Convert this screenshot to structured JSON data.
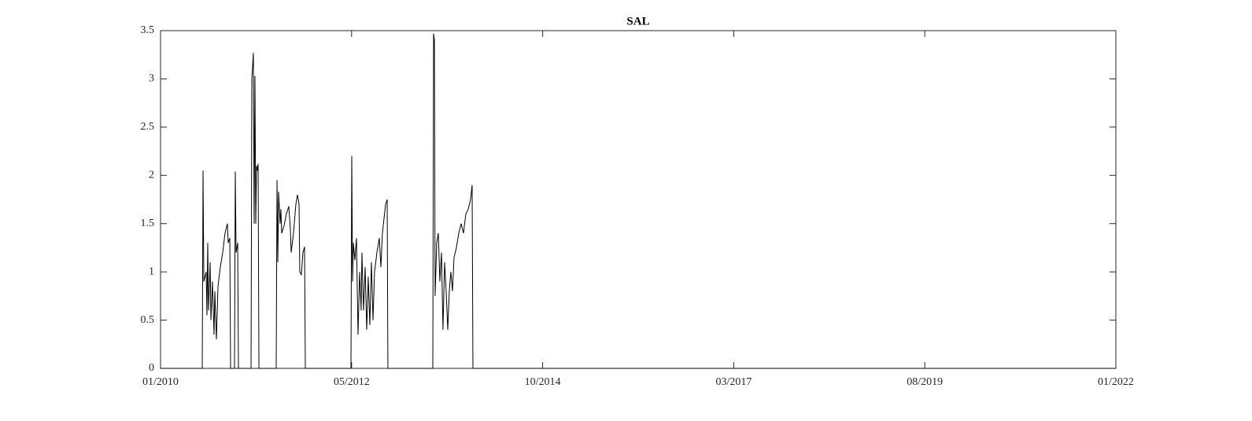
{
  "chart_data": {
    "type": "line",
    "title": "SAL",
    "x": [
      2010.0,
      2010.524,
      2010.534,
      2010.544,
      2010.573,
      2010.583,
      2010.593,
      2010.603,
      2010.623,
      2010.633,
      2010.652,
      2010.672,
      2010.682,
      2010.702,
      2010.722,
      2010.751,
      2010.781,
      2010.81,
      2010.84,
      2010.85,
      2010.87,
      2010.88,
      2010.929,
      2010.939,
      2010.949,
      2010.969,
      2010.979,
      2011.137,
      2011.147,
      2011.166,
      2011.176,
      2011.186,
      2011.196,
      2011.206,
      2011.216,
      2011.226,
      2011.236,
      2011.453,
      2011.463,
      2011.473,
      2011.483,
      2011.502,
      2011.512,
      2011.522,
      2011.552,
      2011.581,
      2011.611,
      2011.631,
      2011.641,
      2011.67,
      2011.7,
      2011.72,
      2011.74,
      2011.749,
      2011.769,
      2011.789,
      2011.809,
      2011.819,
      2012.392,
      2012.402,
      2012.412,
      2012.422,
      2012.441,
      2012.461,
      2012.481,
      2012.501,
      2012.52,
      2012.53,
      2012.55,
      2012.57,
      2012.59,
      2012.609,
      2012.629,
      2012.649,
      2012.669,
      2012.688,
      2012.718,
      2012.748,
      2012.768,
      2012.787,
      2012.807,
      2012.827,
      2012.847,
      2012.856,
      2013.42,
      2013.43,
      2013.44,
      2013.449,
      2013.469,
      2013.489,
      2013.509,
      2013.529,
      2013.548,
      2013.568,
      2013.588,
      2013.608,
      2013.627,
      2013.647,
      2013.667,
      2013.687,
      2013.716,
      2013.746,
      2013.776,
      2013.805,
      2013.835,
      2013.865,
      2013.894,
      2013.914,
      2013.924,
      2022.0
    ],
    "series": [
      {
        "color": "#000000",
        "values": [
          0,
          0,
          2.05,
          0.9,
          1.0,
          0.55,
          1.3,
          0.6,
          1.1,
          0.5,
          0.9,
          0.35,
          0.8,
          0.3,
          0.85,
          1.05,
          1.2,
          1.4,
          1.5,
          1.3,
          1.35,
          0,
          0,
          2.04,
          1.2,
          1.3,
          0,
          0,
          3.0,
          3.27,
          1.5,
          3.03,
          1.5,
          2.1,
          2.05,
          2.12,
          0,
          0,
          1.95,
          1.1,
          1.83,
          1.5,
          1.65,
          1.4,
          1.48,
          1.6,
          1.68,
          1.45,
          1.2,
          1.4,
          1.7,
          1.8,
          1.7,
          1.0,
          0.97,
          1.2,
          1.26,
          0,
          0,
          2.2,
          0.9,
          1.3,
          1.12,
          1.35,
          0.35,
          1.0,
          0.6,
          1.2,
          0.6,
          1.05,
          0.4,
          0.95,
          0.45,
          1.1,
          0.5,
          1.0,
          1.2,
          1.35,
          1.05,
          1.4,
          1.55,
          1.7,
          1.75,
          0,
          0,
          3.47,
          3.4,
          0.75,
          1.3,
          1.4,
          0.9,
          1.2,
          0.4,
          1.1,
          0.8,
          0.4,
          0.8,
          1.0,
          0.8,
          1.15,
          1.25,
          1.4,
          1.5,
          1.4,
          1.6,
          1.65,
          1.75,
          1.9,
          0,
          0
        ]
      }
    ],
    "xlim": [
      2010,
      2022
    ],
    "xticks": [
      {
        "value": 2010,
        "label": "01/2010"
      },
      {
        "value": 2012.4,
        "label": "05/2012"
      },
      {
        "value": 2014.8,
        "label": "10/2014"
      },
      {
        "value": 2017.2,
        "label": "03/2017"
      },
      {
        "value": 2019.6,
        "label": "08/2019"
      },
      {
        "value": 2022,
        "label": "01/2022"
      }
    ],
    "ylim": [
      0,
      3.5
    ],
    "yticks": [
      0,
      0.5,
      1,
      1.5,
      2,
      2.5,
      3,
      3.5
    ],
    "grid": false
  }
}
